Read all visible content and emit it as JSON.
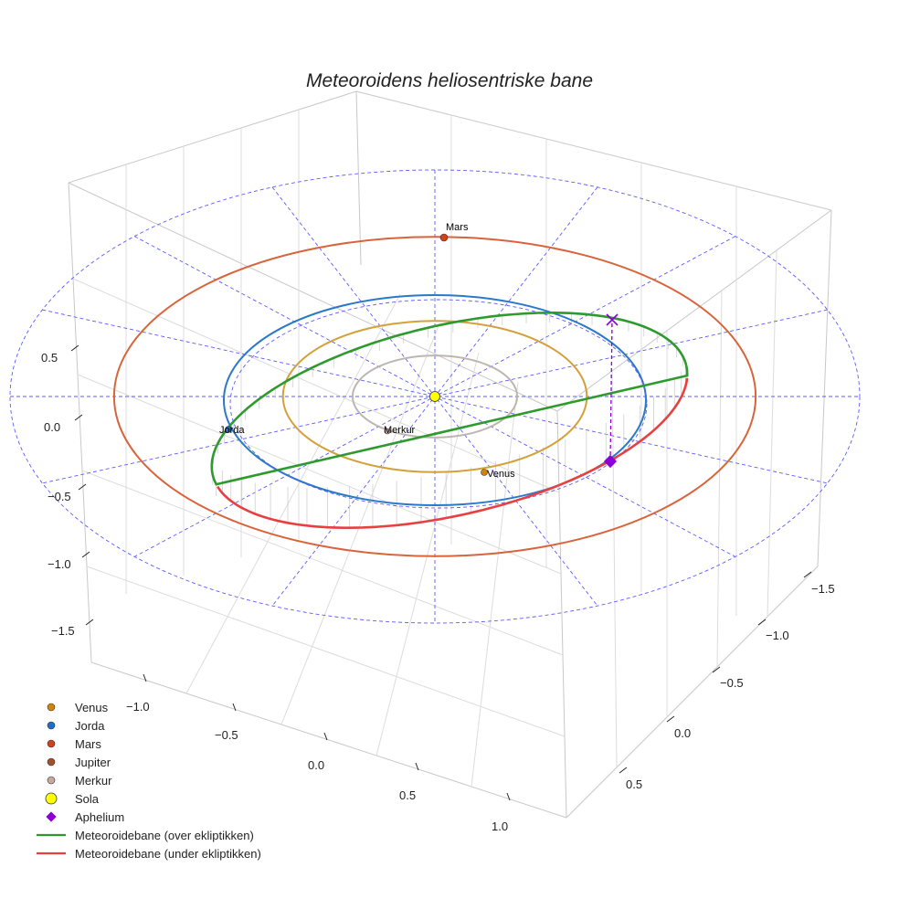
{
  "chart_data": {
    "type": "line",
    "title": "Meteoroidens heliosentriske bane",
    "axes": {
      "x_ticks": [
        "−1.5",
        "−1.0",
        "−0.5",
        "0.0",
        "0.5"
      ],
      "y_ticks": [
        "−1.0",
        "−0.5",
        "0.0",
        "0.5",
        "1.0"
      ],
      "z_ticks": [
        "0.5",
        "0.0",
        "−0.5",
        "−1.0",
        "−1.5"
      ],
      "grid": true
    },
    "planets": [
      {
        "name": "Merkur",
        "radius_au": 0.39,
        "color": "#bdb5b0",
        "label": "Merkur"
      },
      {
        "name": "Venus",
        "radius_au": 0.72,
        "color": "#d4a03a",
        "label": "Venus"
      },
      {
        "name": "Jorda",
        "radius_au": 1.0,
        "color": "#2a79c9",
        "label": "Jorda"
      },
      {
        "name": "Mars",
        "radius_au": 1.52,
        "color": "#d9643c",
        "label": "Mars"
      }
    ],
    "sun": {
      "name": "Sola",
      "color": "#ffff00"
    },
    "meteoroid_orbit": {
      "above_label": "Meteoroidebane (over ekliptikken)",
      "below_label": "Meteoroidebane (under ekliptikken)",
      "above_color": "#2e9a2e",
      "below_color": "#e84040"
    },
    "aphelium": {
      "label": "Aphelium",
      "color": "#8b00d6"
    },
    "legend": [
      {
        "label": "Venus",
        "marker": "circle",
        "color": "#d4820a"
      },
      {
        "label": "Jorda",
        "marker": "circle",
        "color": "#1f6fc8"
      },
      {
        "label": "Mars",
        "marker": "circle",
        "color": "#d0421b"
      },
      {
        "label": "Jupiter",
        "marker": "circle",
        "color": "#a0522d"
      },
      {
        "label": "Merkur",
        "marker": "circle",
        "color": "#c8a8a0"
      },
      {
        "label": "Sola",
        "marker": "big-circle",
        "color": "#ffff00"
      },
      {
        "label": "Aphelium",
        "marker": "diamond",
        "color": "#8b00d6"
      },
      {
        "label": "Meteoroidebane (over ekliptikken)",
        "marker": "line",
        "color": "#2e9a2e"
      },
      {
        "label": "Meteoroidebane (under ekliptikken)",
        "marker": "line",
        "color": "#e84040"
      }
    ]
  }
}
